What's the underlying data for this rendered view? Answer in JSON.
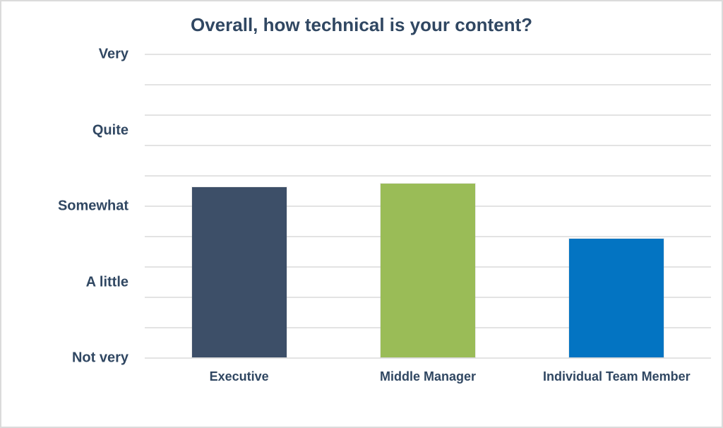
{
  "chart_data": {
    "type": "bar",
    "title": "Overall, how technical is your content?",
    "categories": [
      "Executive",
      "Middle Manager",
      "Individual Team Member"
    ],
    "values": [
      3.25,
      3.3,
      2.57
    ],
    "value_scale_note": "ordinal scale 1-5 where 1=Not very, 2=A little, 3=Somewhat, 4=Quite, 5=Very",
    "y_tick_labels": [
      "Very",
      "Quite",
      "Somewhat",
      "A little",
      "Not very"
    ],
    "ylim": [
      1,
      5
    ],
    "xlabel": "",
    "ylabel": "",
    "grid": "horizontal",
    "gridline_count": 11,
    "legend": "none",
    "bar_colors": [
      "#3D4F68",
      "#9ABC57",
      "#0374C2"
    ],
    "colors": {
      "text": "#304762",
      "gridline": "#e3e3e3",
      "background": "#ffffff",
      "frame_border": "#dbdbdb"
    }
  }
}
